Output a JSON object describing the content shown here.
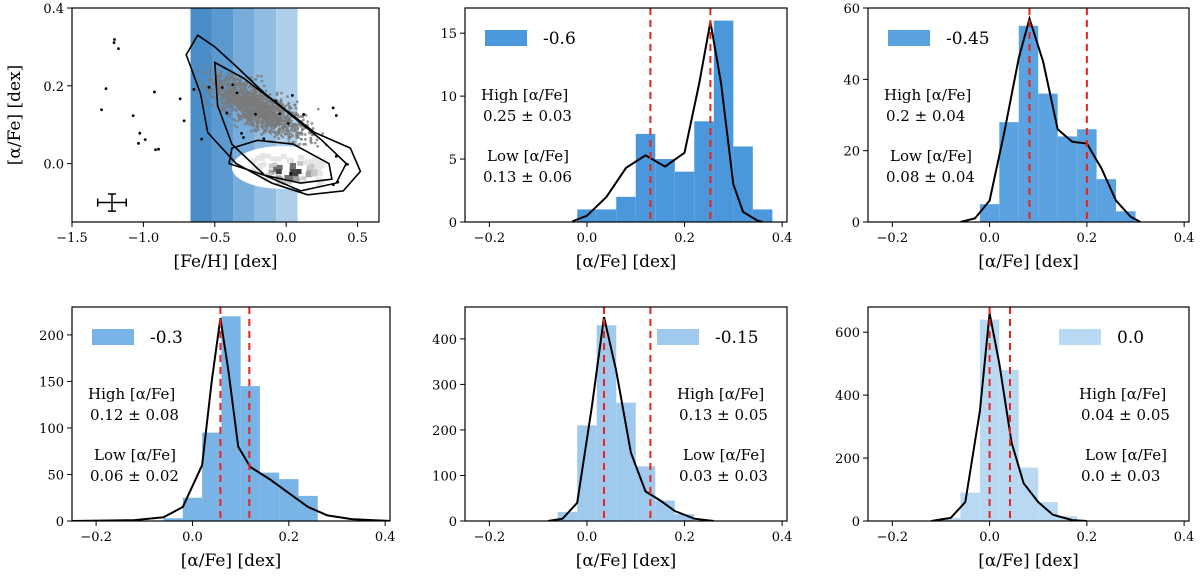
{
  "figure": {
    "description_free": true
  },
  "chart_data": [
    {
      "id": "scatter",
      "type": "scatter",
      "xlabel": "[Fe/H] [dex]",
      "ylabel": "[α/Fe] [dex]",
      "xlim": [
        -1.5,
        0.65
      ],
      "ylim": [
        -0.15,
        0.4
      ],
      "xticks": [
        -1.5,
        -1.0,
        -0.5,
        0.0,
        0.5
      ],
      "xtick_labels": [
        "−1.5",
        "−1.0",
        "−0.5",
        "0.0",
        "0.5"
      ],
      "yticks": [
        0.0,
        0.2,
        0.4
      ],
      "ytick_labels": [
        "0.0",
        "0.2",
        "0.4"
      ],
      "feh_bins": [
        {
          "x0": -0.67,
          "x1": -0.52,
          "color": "#4a8ec9"
        },
        {
          "x0": -0.52,
          "x1": -0.37,
          "color": "#5a9ad0"
        },
        {
          "x0": -0.37,
          "x1": -0.22,
          "color": "#78acda"
        },
        {
          "x0": -0.22,
          "x1": -0.07,
          "color": "#91bde3"
        },
        {
          "x0": -0.07,
          "x1": 0.08,
          "color": "#aecfeb"
        }
      ],
      "error_bar": {
        "x": -1.22,
        "y": -0.1,
        "xerr": 0.1,
        "yerr": 0.022
      }
    },
    {
      "id": "m060",
      "type": "bar",
      "legend": "-0.6",
      "color": "#4a97dc",
      "xlim": [
        -0.25,
        0.41
      ],
      "ylim": [
        0,
        17
      ],
      "xticks": [
        -0.2,
        0.0,
        0.2,
        0.4
      ],
      "xtick_labels": [
        "−0.2",
        "0.0",
        "0.2",
        "0.4"
      ],
      "yticks": [
        0,
        5,
        10,
        15
      ],
      "ytick_labels": [
        "0",
        "5",
        "10",
        "15"
      ],
      "xlabel": "[α/Fe] [dex]",
      "bin_edges": [
        -0.02,
        0.02,
        0.06,
        0.1,
        0.14,
        0.18,
        0.22,
        0.26,
        0.3,
        0.34,
        0.38
      ],
      "counts": [
        1,
        1,
        2,
        7,
        5,
        4,
        8,
        16,
        6,
        1
      ],
      "kde": [
        [
          -0.03,
          0.05
        ],
        [
          0.0,
          0.5
        ],
        [
          0.04,
          2.0
        ],
        [
          0.08,
          4.3
        ],
        [
          0.12,
          5.3
        ],
        [
          0.16,
          4.4
        ],
        [
          0.2,
          5.5
        ],
        [
          0.23,
          11.0
        ],
        [
          0.253,
          15.9
        ],
        [
          0.275,
          11.0
        ],
        [
          0.3,
          3.0
        ],
        [
          0.32,
          0.8
        ],
        [
          0.35,
          0.1
        ],
        [
          0.36,
          0.0
        ]
      ],
      "vlines": [
        0.13,
        0.253
      ],
      "high_label": "High [α/Fe]",
      "high_value": "0.25 ± 0.03",
      "low_label": "Low [α/Fe]",
      "low_value": "0.13 ± 0.06",
      "annot_pos": "left",
      "legend_pos": "left"
    },
    {
      "id": "m045",
      "type": "bar",
      "legend": "-0.45",
      "color": "#5aa3e0",
      "xlim": [
        -0.25,
        0.41
      ],
      "ylim": [
        0,
        60
      ],
      "xticks": [
        -0.2,
        0.0,
        0.2,
        0.4
      ],
      "xtick_labels": [
        "−0.2",
        "0.0",
        "0.2",
        "0.4"
      ],
      "yticks": [
        0,
        20,
        40,
        60
      ],
      "ytick_labels": [
        "0",
        "20",
        "40",
        "60"
      ],
      "xlabel": "[α/Fe] [dex]",
      "bin_edges": [
        -0.02,
        0.02,
        0.06,
        0.1,
        0.14,
        0.18,
        0.22,
        0.26,
        0.3
      ],
      "counts": [
        5,
        28,
        55,
        36,
        24,
        26,
        12,
        3
      ],
      "kde": [
        [
          -0.06,
          0.0
        ],
        [
          -0.03,
          1.0
        ],
        [
          0.0,
          6.0
        ],
        [
          0.03,
          25.0
        ],
        [
          0.06,
          46.0
        ],
        [
          0.082,
          57.0
        ],
        [
          0.11,
          45.0
        ],
        [
          0.14,
          26.0
        ],
        [
          0.17,
          22.5
        ],
        [
          0.2,
          22.0
        ],
        [
          0.23,
          15.0
        ],
        [
          0.26,
          6.0
        ],
        [
          0.29,
          1.5
        ],
        [
          0.31,
          0.0
        ]
      ],
      "vlines": [
        0.082,
        0.2
      ],
      "high_label": "High [α/Fe]",
      "high_value": "0.2 ± 0.04",
      "low_label": "Low [α/Fe]",
      "low_value": "0.08 ± 0.04",
      "annot_pos": "left",
      "legend_pos": "left"
    },
    {
      "id": "m030",
      "type": "bar",
      "legend": "-0.3",
      "color": "#7ab3e6",
      "xlim": [
        -0.25,
        0.41
      ],
      "ylim": [
        0,
        230
      ],
      "xticks": [
        -0.2,
        0.0,
        0.2,
        0.4
      ],
      "xtick_labels": [
        "−0.2",
        "0.0",
        "0.2",
        "0.4"
      ],
      "yticks": [
        0,
        50,
        100,
        150,
        200
      ],
      "ytick_labels": [
        "0",
        "50",
        "100",
        "150",
        "200"
      ],
      "xlabel": "[α/Fe] [dex]",
      "bin_edges": [
        -0.06,
        -0.02,
        0.02,
        0.06,
        0.1,
        0.14,
        0.18,
        0.22,
        0.26
      ],
      "counts": [
        3,
        25,
        95,
        220,
        145,
        52,
        45,
        27
      ],
      "kde": [
        [
          -0.25,
          0.0
        ],
        [
          -0.12,
          1.0
        ],
        [
          -0.06,
          4.0
        ],
        [
          -0.02,
          15.0
        ],
        [
          0.02,
          60.0
        ],
        [
          0.04,
          150.0
        ],
        [
          0.058,
          218.0
        ],
        [
          0.075,
          160.0
        ],
        [
          0.095,
          80.0
        ],
        [
          0.12,
          58.0
        ],
        [
          0.16,
          45.0
        ],
        [
          0.2,
          30.0
        ],
        [
          0.24,
          15.0
        ],
        [
          0.28,
          6.0
        ],
        [
          0.33,
          2.0
        ],
        [
          0.41,
          0.0
        ]
      ],
      "vlines": [
        0.058,
        0.118
      ],
      "high_label": "High [α/Fe]",
      "high_value": "0.12 ± 0.08",
      "low_label": "Low [α/Fe]",
      "low_value": "0.06 ± 0.02",
      "annot_pos": "left",
      "legend_pos": "left"
    },
    {
      "id": "m015",
      "type": "bar",
      "legend": "-0.15",
      "color": "#9fcaee",
      "xlim": [
        -0.25,
        0.41
      ],
      "ylim": [
        0,
        470
      ],
      "xticks": [
        -0.2,
        0.0,
        0.2,
        0.4
      ],
      "xtick_labels": [
        "−0.2",
        "0.0",
        "0.2",
        "0.4"
      ],
      "yticks": [
        0,
        100,
        200,
        300,
        400
      ],
      "ytick_labels": [
        "0",
        "100",
        "200",
        "300",
        "400"
      ],
      "xlabel": "[α/Fe] [dex]",
      "bin_edges": [
        -0.06,
        -0.02,
        0.02,
        0.06,
        0.1,
        0.14,
        0.18,
        0.22
      ],
      "counts": [
        20,
        210,
        430,
        260,
        120,
        45,
        15
      ],
      "kde": [
        [
          -0.08,
          0.0
        ],
        [
          -0.05,
          5.0
        ],
        [
          -0.02,
          40.0
        ],
        [
          0.01,
          250.0
        ],
        [
          0.035,
          448.0
        ],
        [
          0.06,
          330.0
        ],
        [
          0.09,
          150.0
        ],
        [
          0.12,
          65.0
        ],
        [
          0.15,
          45.0
        ],
        [
          0.18,
          22.0
        ],
        [
          0.22,
          5.0
        ],
        [
          0.26,
          0.0
        ]
      ],
      "vlines": [
        0.035,
        0.13
      ],
      "high_label": "High [α/Fe]",
      "high_value": "0.13 ± 0.05",
      "low_label": "Low [α/Fe]",
      "low_value": "0.03 ± 0.03",
      "annot_pos": "right",
      "legend_pos": "right"
    },
    {
      "id": "p000",
      "type": "bar",
      "legend": "0.0",
      "color": "#b9d9f3",
      "xlim": [
        -0.25,
        0.41
      ],
      "ylim": [
        0,
        680
      ],
      "xticks": [
        -0.2,
        0.0,
        0.2,
        0.4
      ],
      "xtick_labels": [
        "−0.2",
        "0.0",
        "0.2",
        "0.4"
      ],
      "yticks": [
        0,
        200,
        400,
        600
      ],
      "ytick_labels": [
        "0",
        "200",
        "400",
        "600"
      ],
      "xlabel": "[α/Fe] [dex]",
      "bin_edges": [
        -0.1,
        -0.06,
        -0.02,
        0.02,
        0.06,
        0.1,
        0.14,
        0.18
      ],
      "counts": [
        10,
        90,
        640,
        480,
        170,
        60,
        15
      ],
      "kde": [
        [
          -0.12,
          0.0
        ],
        [
          -0.08,
          10.0
        ],
        [
          -0.05,
          60.0
        ],
        [
          -0.02,
          350.0
        ],
        [
          0.0,
          660.0
        ],
        [
          0.02,
          500.0
        ],
        [
          0.045,
          250.0
        ],
        [
          0.07,
          120.0
        ],
        [
          0.1,
          60.0
        ],
        [
          0.13,
          20.0
        ],
        [
          0.17,
          3.0
        ],
        [
          0.2,
          0.0
        ]
      ],
      "vlines": [
        0.0,
        0.042
      ],
      "high_label": "High [α/Fe]",
      "high_value": "0.04 ± 0.05",
      "low_label": "Low [α/Fe]",
      "low_value": "0.0 ± 0.03",
      "annot_pos": "right",
      "legend_pos": "right"
    }
  ]
}
